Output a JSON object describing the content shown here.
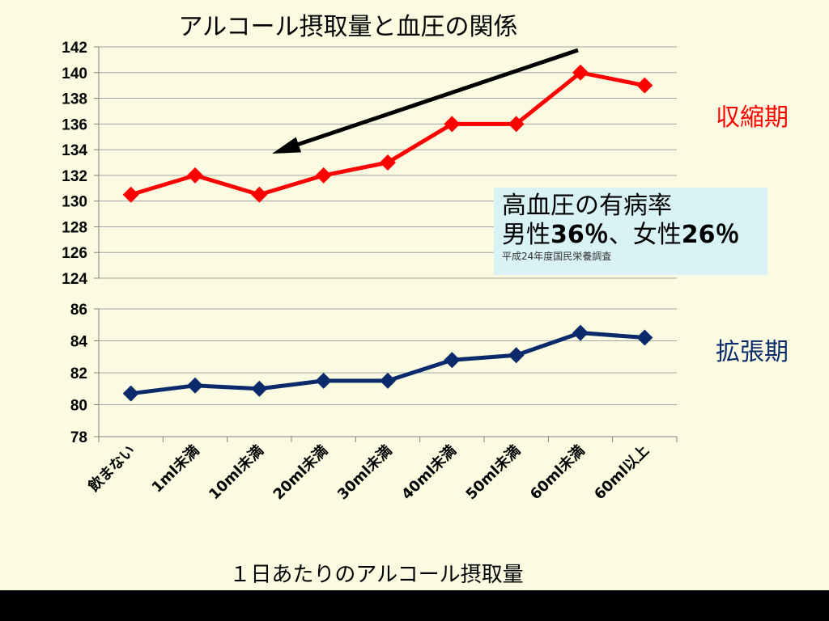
{
  "chart_data": {
    "type": "line",
    "title": "アルコール摂取量と血圧の関係",
    "xlabel": "１日あたりのアルコール摂取量",
    "categories": [
      "飲まない",
      "1ml未満",
      "10ml未満",
      "20ml未満",
      "30ml未満",
      "40ml未満",
      "50ml未満",
      "60ml未満",
      "60ml以上"
    ],
    "panels": [
      {
        "series_label": "収縮期",
        "color": "#ff0000",
        "ylim": [
          124,
          142
        ],
        "yticks": [
          124,
          126,
          128,
          130,
          132,
          134,
          136,
          138,
          140,
          142
        ],
        "values": [
          130.5,
          132,
          130.5,
          132,
          133,
          136,
          136,
          140,
          139
        ]
      },
      {
        "series_label": "拡張期",
        "color": "#0a2a6b",
        "ylim": [
          78,
          86
        ],
        "yticks": [
          78,
          80,
          82,
          84,
          86
        ],
        "values": [
          80.7,
          81.2,
          81.0,
          81.5,
          81.5,
          82.8,
          83.1,
          84.5,
          84.2
        ]
      }
    ],
    "grid": true,
    "annotation_arrow_color": "#000000"
  },
  "callout": {
    "line1": "高血圧の有病率",
    "line2_prefix": "男性",
    "line2_male_value": "36％",
    "line2_separator": "、女性",
    "line2_female_value": "26％",
    "source": "平成24年度国民栄養調査"
  }
}
